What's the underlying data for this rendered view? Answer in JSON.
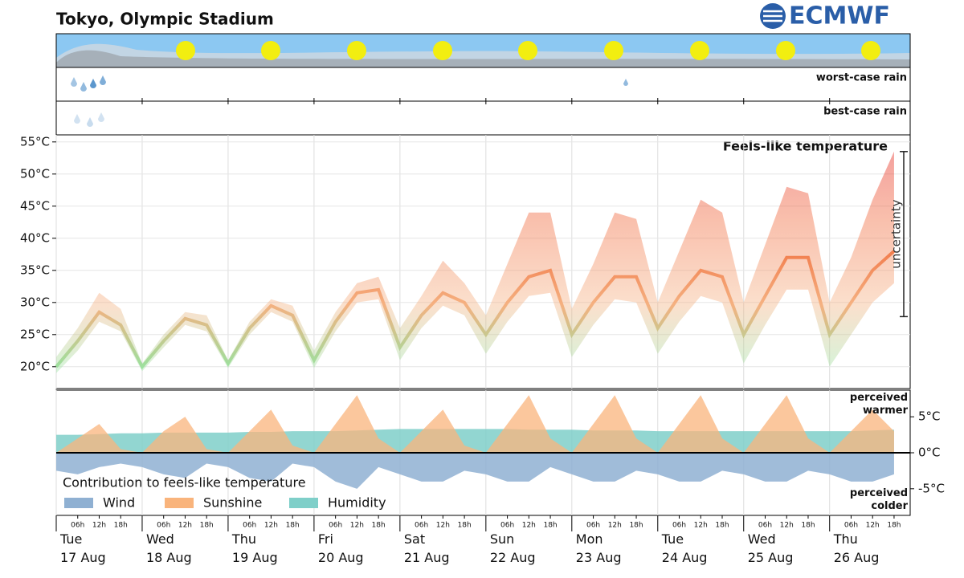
{
  "title": "Tokyo, Olympic Stadium",
  "logo": "ECMWF",
  "strips": {
    "worst": "worst-case rain",
    "best": "best-case rain"
  },
  "chart_data": [
    {
      "type": "band-line",
      "title": "Feels-like temperature",
      "xlim": [
        0,
        238.5
      ],
      "x": [
        0,
        6,
        12,
        18,
        24,
        30,
        36,
        42,
        48,
        54,
        60,
        66,
        72,
        78,
        84,
        90,
        96,
        102,
        108,
        114,
        120,
        126,
        132,
        138,
        144,
        150,
        156,
        162,
        168,
        174,
        180,
        186,
        192,
        198,
        204,
        210,
        216,
        222,
        228,
        234
      ],
      "values": [
        20,
        24,
        28.5,
        26.5,
        20,
        24,
        27.5,
        26.5,
        20.5,
        26,
        29.5,
        28,
        21,
        27,
        31.5,
        32,
        23,
        28,
        31.5,
        30,
        25,
        30,
        34,
        35,
        25,
        30,
        34,
        34,
        26,
        31,
        35,
        34,
        25,
        31,
        37,
        37,
        25,
        30,
        35,
        38
      ],
      "low": [
        19,
        22.5,
        27,
        25.5,
        19.3,
        23,
        26.5,
        25.5,
        19.8,
        25,
        28.5,
        27,
        19.8,
        25.5,
        30,
        30.5,
        21,
        26,
        29.5,
        28,
        22,
        27,
        31,
        31.5,
        21.5,
        26.5,
        30.5,
        30,
        22,
        27,
        31,
        30,
        20.5,
        26.5,
        32,
        32,
        20,
        25,
        30,
        33
      ],
      "high": [
        21.5,
        26,
        31.5,
        29,
        20.5,
        25,
        28.5,
        28,
        21,
        27,
        30.5,
        29.5,
        22.5,
        28.5,
        33,
        34,
        26,
        31,
        36.5,
        33,
        28,
        36,
        44,
        44,
        29,
        36,
        44,
        43,
        30,
        38,
        46,
        44,
        30,
        39,
        48,
        47,
        30,
        37,
        46,
        53.5
      ],
      "colors": [
        "#e00000",
        "#f06030",
        "#f5b080",
        "#7ff0a8"
      ],
      "ylim": [
        16.6,
        56.1
      ],
      "yticks": [
        {
          "value": 20,
          "label": "20°C"
        },
        {
          "value": 25,
          "label": "25°C"
        },
        {
          "value": 30,
          "label": "30°C"
        },
        {
          "value": 35,
          "label": "35°C"
        },
        {
          "value": 40,
          "label": "40°C"
        },
        {
          "value": 45,
          "label": "45°C"
        },
        {
          "value": 50,
          "label": "50°C"
        },
        {
          "value": 55,
          "label": "55°C"
        }
      ],
      "grid": true,
      "uncertainty": {
        "label": "uncertainty",
        "low": 27.8,
        "high": 53.5
      }
    },
    {
      "type": "area",
      "legend_title": "Contribution to feels-like temperature",
      "legend": "lower left",
      "xlim": [
        0,
        238.5
      ],
      "x": [
        0,
        6,
        12,
        18,
        24,
        30,
        36,
        42,
        48,
        54,
        60,
        66,
        72,
        78,
        84,
        90,
        96,
        102,
        108,
        114,
        120,
        126,
        132,
        138,
        144,
        150,
        156,
        162,
        168,
        174,
        180,
        186,
        192,
        198,
        204,
        210,
        216,
        222,
        228,
        234
      ],
      "series": [
        {
          "name": "Wind",
          "color": "#8fb0d2",
          "values": [
            -2.5,
            -3,
            -2,
            -1.5,
            -2,
            -3,
            -3.5,
            -1.5,
            -2,
            -3.5,
            -4,
            -1.5,
            -2,
            -4,
            -5,
            -2,
            -3,
            -4,
            -4,
            -2.5,
            -3,
            -4,
            -4,
            -2,
            -3,
            -4,
            -4,
            -2.5,
            -3,
            -4,
            -4,
            -2.5,
            -3,
            -4,
            -4,
            -2.5,
            -3,
            -4,
            -4,
            -3
          ]
        },
        {
          "name": "Sunshine",
          "color": "#f9b47c",
          "values": [
            0,
            2,
            4,
            0.5,
            0,
            3,
            5,
            0.5,
            0,
            3,
            6,
            1,
            0,
            4,
            8,
            2,
            0,
            3,
            6,
            1,
            0,
            4,
            8,
            2,
            0,
            4,
            8,
            2,
            0,
            4,
            8,
            2,
            0,
            4,
            8,
            2,
            0,
            3,
            6,
            3
          ]
        },
        {
          "name": "Humidity",
          "color": "#7fcfc9",
          "values": [
            2.5,
            2.5,
            2.6,
            2.7,
            2.7,
            2.8,
            2.8,
            2.8,
            2.8,
            2.9,
            2.9,
            3.0,
            3.0,
            3.0,
            3.1,
            3.2,
            3.3,
            3.3,
            3.3,
            3.3,
            3.3,
            3.3,
            3.2,
            3.2,
            3.2,
            3.1,
            3.1,
            3.1,
            3.0,
            3.0,
            3.0,
            3.0,
            3.0,
            3.0,
            3.0,
            3.0,
            3.0,
            3.0,
            3.1,
            3.2
          ]
        }
      ],
      "ylim": [
        -8.7,
        8.7
      ],
      "yticks": [
        {
          "value": -5,
          "label": "-5°C"
        },
        {
          "value": 0,
          "label": "0°C"
        },
        {
          "value": 5,
          "label": "5°C"
        }
      ],
      "annotations": [
        "perceived\nwarmer",
        "perceived\ncolder"
      ],
      "xticks": [
        {
          "value": 0,
          "label": "Tue\n17 Aug"
        },
        {
          "value": 24,
          "label": "Wed\n18 Aug"
        },
        {
          "value": 48,
          "label": "Thu\n19 Aug"
        },
        {
          "value": 72,
          "label": "Fri\n20 Aug"
        },
        {
          "value": 96,
          "label": "Sat\n21 Aug"
        },
        {
          "value": 120,
          "label": "Sun\n22 Aug"
        },
        {
          "value": 144,
          "label": "Mon\n23 Aug"
        },
        {
          "value": 168,
          "label": "Tue\n24 Aug"
        },
        {
          "value": 192,
          "label": "Wed\n25 Aug"
        },
        {
          "value": 216,
          "label": "Thu\n26 Aug"
        }
      ],
      "minor_xticks": [
        {
          "value": 6,
          "label": "06h"
        },
        {
          "value": 12,
          "label": "12h"
        },
        {
          "value": 18,
          "label": "18h"
        }
      ]
    }
  ]
}
